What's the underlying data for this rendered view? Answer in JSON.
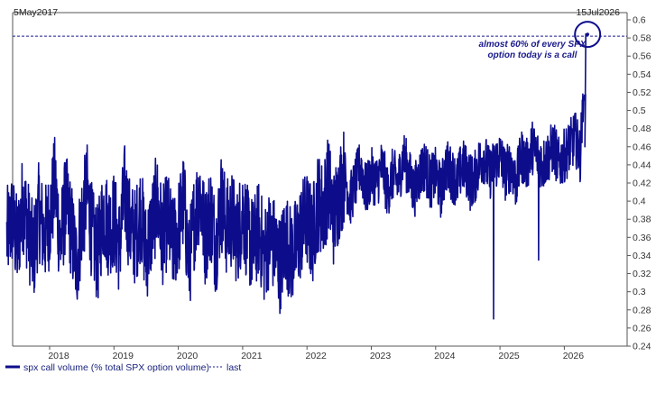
{
  "chart_data": {
    "type": "line",
    "start_label": "5May2017",
    "end_label": "15Jul2026",
    "x_ticks": [
      "2018",
      "2019",
      "2020",
      "2021",
      "2022",
      "2023",
      "2024",
      "2025",
      "2026"
    ],
    "ylim": [
      0.24,
      0.6
    ],
    "y_ticks": [
      "0.6",
      "0.58",
      "0.56",
      "0.54",
      "0.52",
      "0.5",
      "0.48",
      "0.46",
      "0.44",
      "0.42",
      "0.4",
      "0.38",
      "0.36",
      "0.34",
      "0.32",
      "0.3",
      "0.28",
      "0.26",
      "0.24"
    ],
    "series": [
      {
        "name": "spx call volume (% total SPX option volume)",
        "color": "#0d0d8c",
        "style": "solid",
        "x": [
          "2017-05",
          "2017-06",
          "2017-07",
          "2017-08",
          "2017-09",
          "2017-10",
          "2017-11",
          "2017-12",
          "2018-01",
          "2018-02",
          "2018-03",
          "2018-04",
          "2018-05",
          "2018-06",
          "2018-07",
          "2018-08",
          "2018-09",
          "2018-10",
          "2018-11",
          "2018-12",
          "2019-01",
          "2019-02",
          "2019-03",
          "2019-04",
          "2019-05",
          "2019-06",
          "2019-07",
          "2019-08",
          "2019-09",
          "2019-10",
          "2019-11",
          "2019-12",
          "2020-01",
          "2020-02",
          "2020-03",
          "2020-04",
          "2020-05",
          "2020-06",
          "2020-07",
          "2020-08",
          "2020-09",
          "2020-10",
          "2020-11",
          "2020-12",
          "2021-01",
          "2021-02",
          "2021-03",
          "2021-04",
          "2021-05",
          "2021-06",
          "2021-07",
          "2021-08",
          "2021-09",
          "2021-10",
          "2021-11",
          "2021-12",
          "2022-01",
          "2022-02",
          "2022-03",
          "2022-04",
          "2022-05",
          "2022-06",
          "2022-07",
          "2022-08",
          "2022-09",
          "2022-10",
          "2022-11",
          "2022-12",
          "2023-01",
          "2023-02",
          "2023-03",
          "2023-04",
          "2023-05",
          "2023-06",
          "2023-07",
          "2023-08",
          "2023-09",
          "2023-10",
          "2023-11",
          "2023-12",
          "2024-01",
          "2024-02",
          "2024-03",
          "2024-04",
          "2024-05",
          "2024-06",
          "2024-07",
          "2024-08",
          "2024-09",
          "2024-10",
          "2024-11",
          "2024-12",
          "2025-01",
          "2025-02",
          "2025-03",
          "2025-04",
          "2025-05",
          "2025-06",
          "2025-07",
          "2025-08",
          "2025-09",
          "2025-10",
          "2025-11",
          "2025-12",
          "2026-01",
          "2026-02",
          "2026-03",
          "2026-04",
          "2026-05"
        ],
        "values": [
          0.36,
          0.38,
          0.35,
          0.4,
          0.37,
          0.34,
          0.39,
          0.36,
          0.38,
          0.42,
          0.35,
          0.4,
          0.37,
          0.33,
          0.38,
          0.41,
          0.36,
          0.34,
          0.39,
          0.37,
          0.38,
          0.35,
          0.41,
          0.37,
          0.36,
          0.39,
          0.34,
          0.37,
          0.4,
          0.36,
          0.38,
          0.35,
          0.37,
          0.4,
          0.33,
          0.38,
          0.41,
          0.36,
          0.39,
          0.35,
          0.4,
          0.37,
          0.38,
          0.36,
          0.39,
          0.36,
          0.35,
          0.37,
          0.34,
          0.36,
          0.35,
          0.33,
          0.36,
          0.34,
          0.35,
          0.37,
          0.38,
          0.36,
          0.4,
          0.39,
          0.42,
          0.38,
          0.41,
          0.43,
          0.4,
          0.42,
          0.44,
          0.41,
          0.43,
          0.42,
          0.44,
          0.41,
          0.43,
          0.42,
          0.45,
          0.43,
          0.41,
          0.43,
          0.44,
          0.42,
          0.43,
          0.41,
          0.44,
          0.43,
          0.42,
          0.44,
          0.43,
          0.42,
          0.44,
          0.45,
          0.43,
          0.44,
          0.45,
          0.43,
          0.44,
          0.42,
          0.45,
          0.44,
          0.46,
          0.45,
          0.44,
          0.45,
          0.46,
          0.44,
          0.45,
          0.46,
          0.47,
          0.45,
          0.585
        ]
      },
      {
        "name": "last",
        "color": "#1a1a8c",
        "style": "dashed",
        "value": 0.582
      }
    ],
    "annotation": "almost 60% of every SPX option today is a call",
    "grid": false,
    "legend_position": "bottom-left"
  }
}
